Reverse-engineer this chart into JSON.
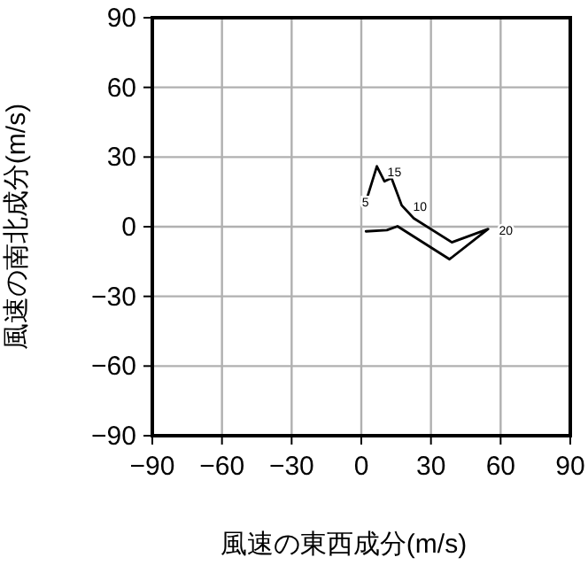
{
  "chart_data": {
    "type": "line",
    "xlabel": "風速の東西成分(m/s)",
    "ylabel": "風速の南北成分(m/s)",
    "xlim": [
      -90,
      90
    ],
    "ylim": [
      -90,
      90
    ],
    "xticks": [
      -90,
      -60,
      -30,
      0,
      30,
      60,
      90
    ],
    "yticks": [
      -90,
      -60,
      -30,
      0,
      30,
      60,
      90
    ],
    "grid": true,
    "series": [
      {
        "color": "#000000",
        "x": [
          2,
          11,
          15.6,
          38,
          54.6,
          39,
          22.6,
          17.4,
          13,
          10,
          6.7,
          1.5
        ],
        "values": [
          -2,
          -1.5,
          0.2,
          -14,
          -1,
          -6.7,
          3.6,
          9.2,
          21,
          19.5,
          26,
          9.2
        ]
      }
    ],
    "annotations": [
      {
        "text": "20",
        "x": 57,
        "y": -1
      },
      {
        "text": "15",
        "x": 9,
        "y": 24
      },
      {
        "text": "10",
        "x": 20,
        "y": 9
      },
      {
        "text": "5",
        "x": -2,
        "y": 11
      }
    ]
  }
}
